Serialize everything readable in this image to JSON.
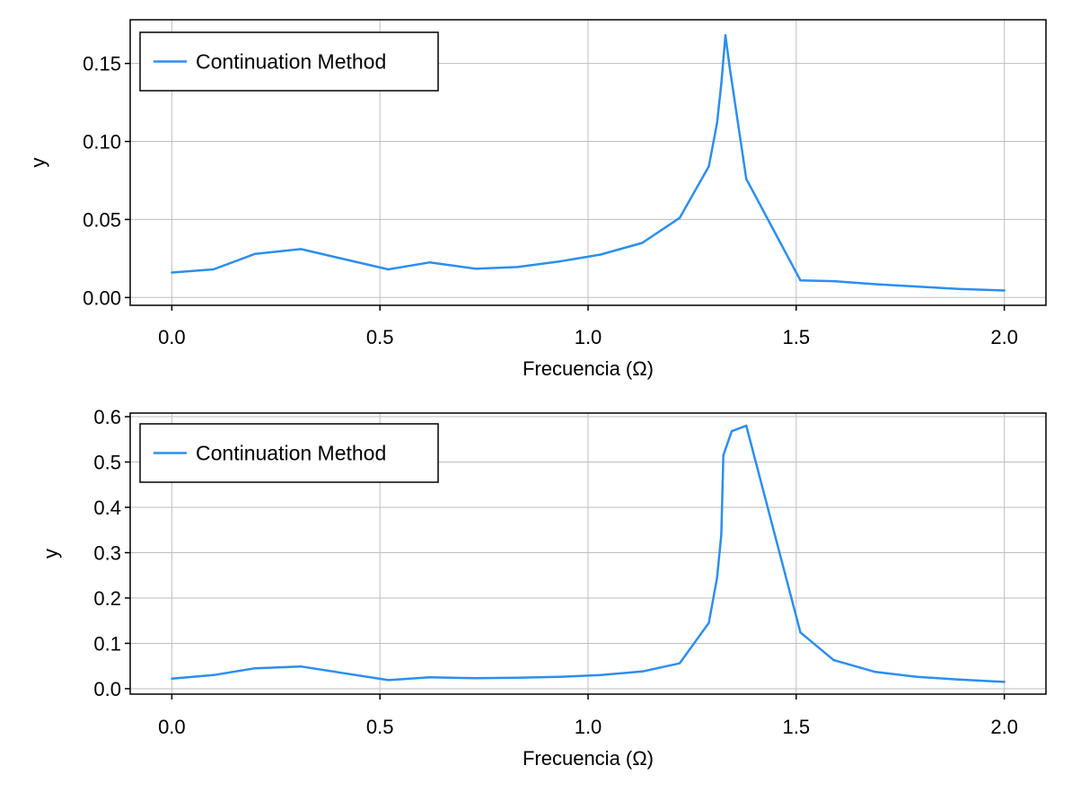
{
  "chart_data": [
    {
      "type": "line",
      "xlabel": "Frecuencia (Ω)",
      "ylabel": "y",
      "xlim": [
        -0.1,
        2.1
      ],
      "ylim": [
        -0.005,
        0.178
      ],
      "xticks": [
        0.0,
        0.5,
        1.0,
        1.5,
        2.0
      ],
      "xtick_labels": [
        "0.0",
        "0.5",
        "1.0",
        "1.5",
        "2.0"
      ],
      "yticks": [
        0.0,
        0.05,
        0.1,
        0.15
      ],
      "ytick_labels": [
        "0.00",
        "0.05",
        "0.10",
        "0.15"
      ],
      "grid": true,
      "legend_position": "top-left",
      "series": [
        {
          "name": "Continuation Method",
          "color": "#2b8ef0",
          "x": [
            0.0,
            0.1,
            0.2,
            0.31,
            0.52,
            0.62,
            0.73,
            0.83,
            0.93,
            1.03,
            1.13,
            1.22,
            1.29,
            1.31,
            1.32,
            1.33,
            1.34,
            1.38,
            1.51,
            1.59,
            1.69,
            1.79,
            1.89,
            2.0
          ],
          "y": [
            0.016,
            0.018,
            0.028,
            0.031,
            0.018,
            0.0225,
            0.0185,
            0.0195,
            0.023,
            0.0275,
            0.035,
            0.051,
            0.084,
            0.112,
            0.137,
            0.168,
            0.148,
            0.076,
            0.011,
            0.0105,
            0.0085,
            0.007,
            0.0055,
            0.0045
          ]
        }
      ]
    },
    {
      "type": "line",
      "xlabel": "Frecuencia (Ω)",
      "ylabel": "y",
      "xlim": [
        -0.1,
        2.1
      ],
      "ylim": [
        -0.012,
        0.608
      ],
      "xticks": [
        0.0,
        0.5,
        1.0,
        1.5,
        2.0
      ],
      "xtick_labels": [
        "0.0",
        "0.5",
        "1.0",
        "1.5",
        "2.0"
      ],
      "yticks": [
        0.0,
        0.1,
        0.2,
        0.3,
        0.4,
        0.5,
        0.6
      ],
      "ytick_labels": [
        "0.0",
        "0.1",
        "0.2",
        "0.3",
        "0.4",
        "0.5",
        "0.6"
      ],
      "grid": true,
      "legend_position": "top-left",
      "series": [
        {
          "name": "Continuation Method",
          "color": "#2b8ef0",
          "x": [
            0.0,
            0.1,
            0.2,
            0.31,
            0.52,
            0.62,
            0.73,
            0.83,
            0.93,
            1.03,
            1.13,
            1.22,
            1.29,
            1.31,
            1.32,
            1.325,
            1.345,
            1.38,
            1.51,
            1.59,
            1.69,
            1.79,
            1.89,
            2.0
          ],
          "y": [
            0.022,
            0.03,
            0.045,
            0.049,
            0.019,
            0.025,
            0.023,
            0.024,
            0.026,
            0.03,
            0.038,
            0.056,
            0.145,
            0.245,
            0.34,
            0.515,
            0.568,
            0.58,
            0.124,
            0.063,
            0.037,
            0.026,
            0.02,
            0.015
          ]
        }
      ]
    }
  ]
}
